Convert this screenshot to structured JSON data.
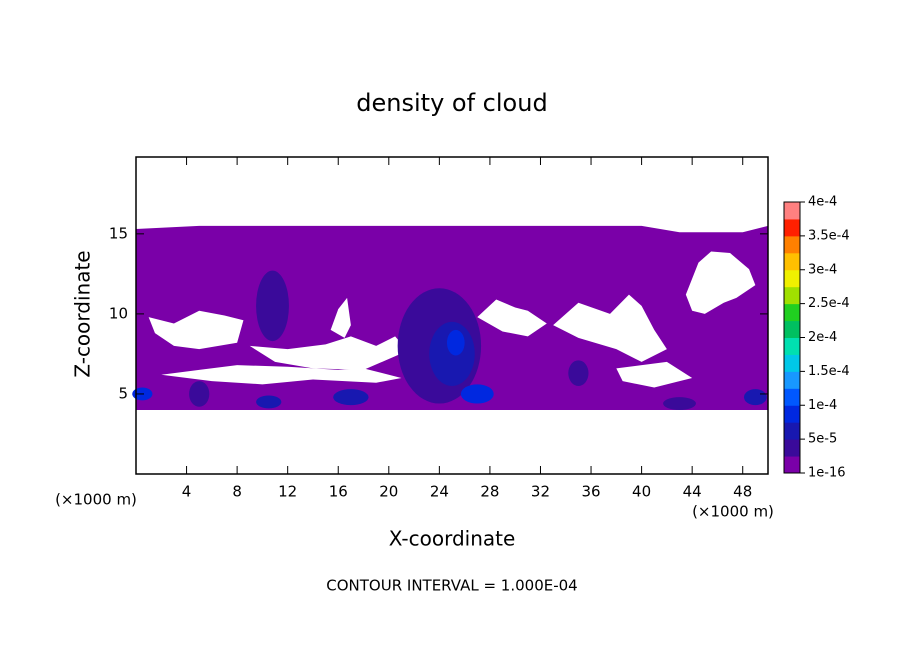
{
  "chart_data": {
    "type": "contour",
    "title": "density of cloud",
    "x_label": "X-coordinate",
    "y_label": "Z-coordinate",
    "x_unit": "(×1000 m)",
    "y_unit": "(×1000 m)",
    "footer": "CONTOUR INTERVAL = 1.000E-04",
    "xlim": [
      0,
      50
    ],
    "ylim": [
      0,
      19.8
    ],
    "xticks": [
      4,
      8,
      12,
      16,
      20,
      24,
      28,
      32,
      36,
      40,
      44,
      48
    ],
    "yticks": [
      5,
      10,
      15
    ],
    "colorbar": {
      "colors": [
        "#7a00a8",
        "#3a0a9a",
        "#1818b0",
        "#0028e0",
        "#0058ff",
        "#1898ff",
        "#00c8e8",
        "#00e0b0",
        "#00c060",
        "#20d020",
        "#a0e000",
        "#f0f000",
        "#ffc000",
        "#ff8000",
        "#ff2000",
        "#ff8080"
      ],
      "ticks": [
        {
          "value": 1e-16,
          "label": "1e-16"
        },
        {
          "value": 5e-05,
          "label": "5e-5"
        },
        {
          "value": 0.0001,
          "label": "1e-4"
        },
        {
          "value": 0.00015,
          "label": "1.5e-4"
        },
        {
          "value": 0.0002,
          "label": "2e-4"
        },
        {
          "value": 0.00025,
          "label": "2.5e-4"
        },
        {
          "value": 0.0003,
          "label": "3e-4"
        },
        {
          "value": 0.00035,
          "label": "3.5e-4"
        },
        {
          "value": 0.0004,
          "label": "4e-4"
        }
      ]
    },
    "base": {
      "level": 0,
      "x": [
        0,
        5,
        40,
        43,
        48,
        50,
        50,
        0
      ],
      "z": [
        15.3,
        15.5,
        15.5,
        15.1,
        15.1,
        15.5,
        4,
        4
      ]
    },
    "holes": [
      {
        "x": [
          1,
          3,
          5,
          7,
          8.5,
          8,
          5,
          3,
          1.5
        ],
        "z": [
          9.8,
          9.4,
          10.2,
          9.9,
          9.6,
          8.2,
          7.8,
          8.0,
          8.8
        ]
      },
      {
        "x": [
          9,
          12,
          15,
          17,
          19,
          20.5,
          21.5,
          18,
          14,
          11
        ],
        "z": [
          8.0,
          7.8,
          8.1,
          8.6,
          8.0,
          8.6,
          7.7,
          6.5,
          6.6,
          7.0
        ]
      },
      {
        "x": [
          15.4,
          16,
          16.7,
          17,
          16.5
        ],
        "z": [
          9.0,
          10.3,
          11.0,
          9.3,
          8.5
        ]
      },
      {
        "x": [
          27,
          28.5,
          30,
          31,
          32.5,
          31,
          29
        ],
        "z": [
          9.8,
          10.9,
          10.4,
          10.2,
          9.4,
          8.6,
          8.9
        ]
      },
      {
        "x": [
          33,
          35,
          37.5,
          39,
          40,
          41,
          42,
          40,
          38,
          35
        ],
        "z": [
          9.3,
          10.7,
          10.0,
          11.2,
          10.5,
          9.0,
          7.8,
          7.0,
          7.8,
          8.5
        ]
      },
      {
        "x": [
          43.5,
          44.5,
          45.5,
          47,
          48.5,
          49,
          47.5,
          46.5,
          45,
          44
        ],
        "z": [
          11.2,
          13.2,
          13.9,
          13.8,
          12.8,
          11.8,
          11.0,
          10.7,
          10.0,
          10.2
        ]
      },
      {
        "x": [
          2,
          5,
          8,
          12,
          16,
          18,
          21,
          19,
          14,
          10,
          6
        ],
        "z": [
          6.2,
          6.5,
          6.8,
          6.7,
          6.5,
          6.6,
          6.0,
          5.7,
          5.9,
          5.6,
          5.8
        ]
      },
      {
        "x": [
          38,
          42,
          44,
          41,
          38.5
        ],
        "z": [
          6.6,
          7.0,
          6.0,
          5.4,
          5.8
        ]
      }
    ],
    "blobs": [
      {
        "level": 1,
        "x": 10.8,
        "z": 10.5,
        "rx": 1.3,
        "rz": 2.2
      },
      {
        "level": 1,
        "x": 24,
        "z": 8,
        "rx": 3.3,
        "rz": 3.6
      },
      {
        "level": 2,
        "x": 25,
        "z": 7.5,
        "rx": 1.8,
        "rz": 2
      },
      {
        "level": 3,
        "x": 25.3,
        "z": 8.2,
        "rx": 0.7,
        "rz": 0.8
      },
      {
        "level": 3,
        "x": 27,
        "z": 5,
        "rx": 1.3,
        "rz": 0.6
      },
      {
        "level": 2,
        "x": 17,
        "z": 4.8,
        "rx": 1.4,
        "rz": 0.5
      },
      {
        "level": 1,
        "x": 5,
        "z": 5,
        "rx": 0.8,
        "rz": 0.8
      },
      {
        "level": 3,
        "x": 0.5,
        "z": 5,
        "rx": 0.8,
        "rz": 0.4
      },
      {
        "level": 2,
        "x": 10.5,
        "z": 4.5,
        "rx": 1,
        "rz": 0.4
      },
      {
        "level": 1,
        "x": 43,
        "z": 4.4,
        "rx": 1.3,
        "rz": 0.4
      },
      {
        "level": 2,
        "x": 49,
        "z": 4.8,
        "rx": 0.9,
        "rz": 0.5
      },
      {
        "level": 1,
        "x": 35,
        "z": 6.3,
        "rx": 0.8,
        "rz": 0.8
      }
    ]
  }
}
